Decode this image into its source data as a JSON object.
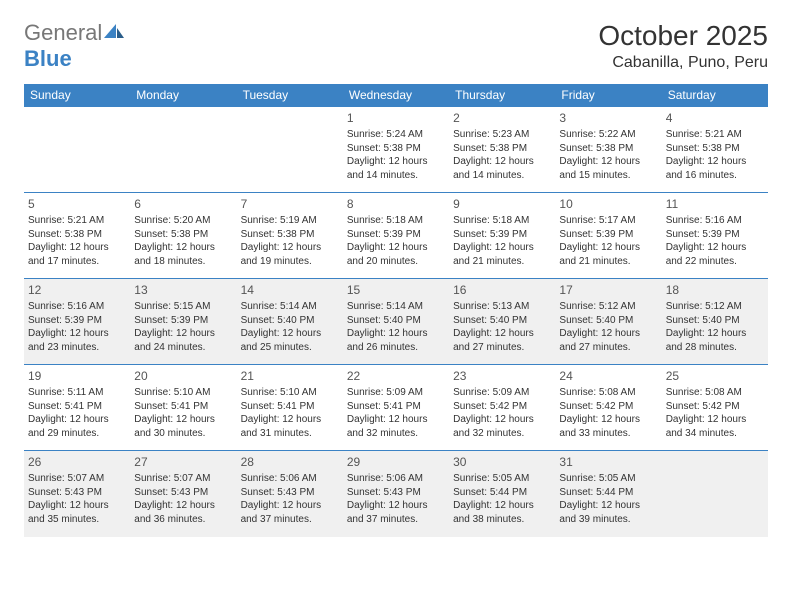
{
  "brand": {
    "part1": "General",
    "part2": "Blue"
  },
  "title": "October 2025",
  "location": "Cabanilla, Puno, Peru",
  "colors": {
    "header_bg": "#3b82c4",
    "header_fg": "#ffffff",
    "row_border": "#3b82c4",
    "alt_bg": "#f0f0f0",
    "page_bg": "#ffffff",
    "text": "#333333"
  },
  "dow": [
    "Sunday",
    "Monday",
    "Tuesday",
    "Wednesday",
    "Thursday",
    "Friday",
    "Saturday"
  ],
  "weeks": [
    {
      "alt": false,
      "cells": [
        null,
        null,
        null,
        {
          "n": "1",
          "rise": "5:24 AM",
          "set": "5:38 PM",
          "dl1": "Daylight: 12 hours",
          "dl2": "and 14 minutes."
        },
        {
          "n": "2",
          "rise": "5:23 AM",
          "set": "5:38 PM",
          "dl1": "Daylight: 12 hours",
          "dl2": "and 14 minutes."
        },
        {
          "n": "3",
          "rise": "5:22 AM",
          "set": "5:38 PM",
          "dl1": "Daylight: 12 hours",
          "dl2": "and 15 minutes."
        },
        {
          "n": "4",
          "rise": "5:21 AM",
          "set": "5:38 PM",
          "dl1": "Daylight: 12 hours",
          "dl2": "and 16 minutes."
        }
      ]
    },
    {
      "alt": false,
      "cells": [
        {
          "n": "5",
          "rise": "5:21 AM",
          "set": "5:38 PM",
          "dl1": "Daylight: 12 hours",
          "dl2": "and 17 minutes."
        },
        {
          "n": "6",
          "rise": "5:20 AM",
          "set": "5:38 PM",
          "dl1": "Daylight: 12 hours",
          "dl2": "and 18 minutes."
        },
        {
          "n": "7",
          "rise": "5:19 AM",
          "set": "5:38 PM",
          "dl1": "Daylight: 12 hours",
          "dl2": "and 19 minutes."
        },
        {
          "n": "8",
          "rise": "5:18 AM",
          "set": "5:39 PM",
          "dl1": "Daylight: 12 hours",
          "dl2": "and 20 minutes."
        },
        {
          "n": "9",
          "rise": "5:18 AM",
          "set": "5:39 PM",
          "dl1": "Daylight: 12 hours",
          "dl2": "and 21 minutes."
        },
        {
          "n": "10",
          "rise": "5:17 AM",
          "set": "5:39 PM",
          "dl1": "Daylight: 12 hours",
          "dl2": "and 21 minutes."
        },
        {
          "n": "11",
          "rise": "5:16 AM",
          "set": "5:39 PM",
          "dl1": "Daylight: 12 hours",
          "dl2": "and 22 minutes."
        }
      ]
    },
    {
      "alt": true,
      "cells": [
        {
          "n": "12",
          "rise": "5:16 AM",
          "set": "5:39 PM",
          "dl1": "Daylight: 12 hours",
          "dl2": "and 23 minutes."
        },
        {
          "n": "13",
          "rise": "5:15 AM",
          "set": "5:39 PM",
          "dl1": "Daylight: 12 hours",
          "dl2": "and 24 minutes."
        },
        {
          "n": "14",
          "rise": "5:14 AM",
          "set": "5:40 PM",
          "dl1": "Daylight: 12 hours",
          "dl2": "and 25 minutes."
        },
        {
          "n": "15",
          "rise": "5:14 AM",
          "set": "5:40 PM",
          "dl1": "Daylight: 12 hours",
          "dl2": "and 26 minutes."
        },
        {
          "n": "16",
          "rise": "5:13 AM",
          "set": "5:40 PM",
          "dl1": "Daylight: 12 hours",
          "dl2": "and 27 minutes."
        },
        {
          "n": "17",
          "rise": "5:12 AM",
          "set": "5:40 PM",
          "dl1": "Daylight: 12 hours",
          "dl2": "and 27 minutes."
        },
        {
          "n": "18",
          "rise": "5:12 AM",
          "set": "5:40 PM",
          "dl1": "Daylight: 12 hours",
          "dl2": "and 28 minutes."
        }
      ]
    },
    {
      "alt": false,
      "cells": [
        {
          "n": "19",
          "rise": "5:11 AM",
          "set": "5:41 PM",
          "dl1": "Daylight: 12 hours",
          "dl2": "and 29 minutes."
        },
        {
          "n": "20",
          "rise": "5:10 AM",
          "set": "5:41 PM",
          "dl1": "Daylight: 12 hours",
          "dl2": "and 30 minutes."
        },
        {
          "n": "21",
          "rise": "5:10 AM",
          "set": "5:41 PM",
          "dl1": "Daylight: 12 hours",
          "dl2": "and 31 minutes."
        },
        {
          "n": "22",
          "rise": "5:09 AM",
          "set": "5:41 PM",
          "dl1": "Daylight: 12 hours",
          "dl2": "and 32 minutes."
        },
        {
          "n": "23",
          "rise": "5:09 AM",
          "set": "5:42 PM",
          "dl1": "Daylight: 12 hours",
          "dl2": "and 32 minutes."
        },
        {
          "n": "24",
          "rise": "5:08 AM",
          "set": "5:42 PM",
          "dl1": "Daylight: 12 hours",
          "dl2": "and 33 minutes."
        },
        {
          "n": "25",
          "rise": "5:08 AM",
          "set": "5:42 PM",
          "dl1": "Daylight: 12 hours",
          "dl2": "and 34 minutes."
        }
      ]
    },
    {
      "alt": true,
      "cells": [
        {
          "n": "26",
          "rise": "5:07 AM",
          "set": "5:43 PM",
          "dl1": "Daylight: 12 hours",
          "dl2": "and 35 minutes."
        },
        {
          "n": "27",
          "rise": "5:07 AM",
          "set": "5:43 PM",
          "dl1": "Daylight: 12 hours",
          "dl2": "and 36 minutes."
        },
        {
          "n": "28",
          "rise": "5:06 AM",
          "set": "5:43 PM",
          "dl1": "Daylight: 12 hours",
          "dl2": "and 37 minutes."
        },
        {
          "n": "29",
          "rise": "5:06 AM",
          "set": "5:43 PM",
          "dl1": "Daylight: 12 hours",
          "dl2": "and 37 minutes."
        },
        {
          "n": "30",
          "rise": "5:05 AM",
          "set": "5:44 PM",
          "dl1": "Daylight: 12 hours",
          "dl2": "and 38 minutes."
        },
        {
          "n": "31",
          "rise": "5:05 AM",
          "set": "5:44 PM",
          "dl1": "Daylight: 12 hours",
          "dl2": "and 39 minutes."
        },
        null
      ]
    }
  ],
  "labels": {
    "sunrise": "Sunrise: ",
    "sunset": "Sunset: "
  }
}
